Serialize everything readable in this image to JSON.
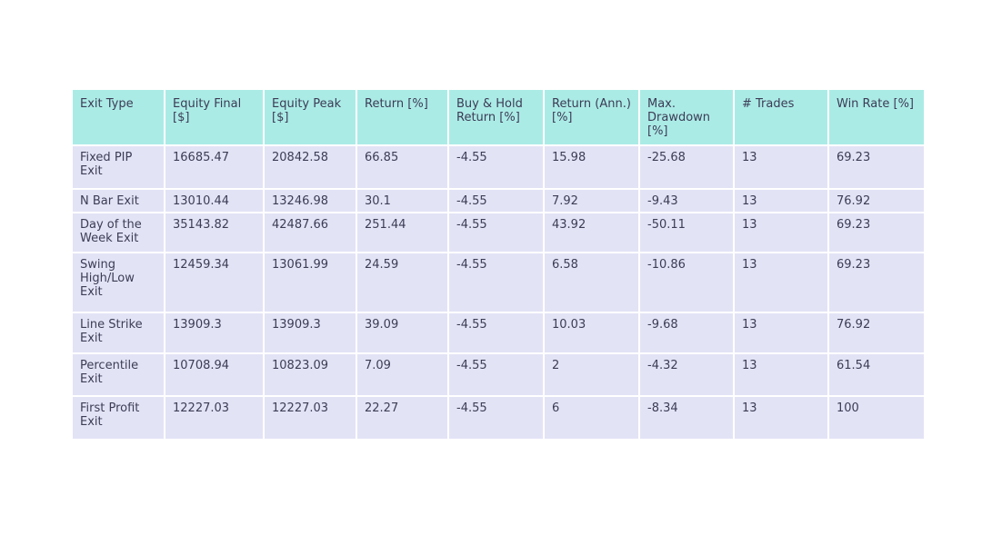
{
  "colors": {
    "header_bg": "#abebe6",
    "row_bg": "#e3e3f6",
    "text": "#3c3c55",
    "page_bg": "#ffffff"
  },
  "table": {
    "columns": [
      "Exit Type",
      "Equity Final [$]",
      "Equity Peak [$]",
      "Return [%]",
      "Buy & Hold Return [%]",
      "Return (Ann.) [%]",
      "Max. Drawdown [%]",
      "# Trades",
      "Win Rate [%]"
    ],
    "rows": [
      [
        "Fixed PIP Exit",
        "16685.47",
        "20842.58",
        "66.85",
        "-4.55",
        "15.98",
        "-25.68",
        "13",
        "69.23"
      ],
      [
        "N Bar Exit",
        "13010.44",
        "13246.98",
        "30.1",
        "-4.55",
        "7.92",
        "-9.43",
        "13",
        "76.92"
      ],
      [
        "Day of the Week Exit",
        "35143.82",
        "42487.66",
        "251.44",
        "-4.55",
        "43.92",
        "-50.11",
        "13",
        "69.23"
      ],
      [
        "Swing High/Low Exit",
        "12459.34",
        "13061.99",
        "24.59",
        "-4.55",
        "6.58",
        "-10.86",
        "13",
        "69.23"
      ],
      [
        "Line Strike Exit",
        "13909.3",
        "13909.3",
        "39.09",
        "-4.55",
        "10.03",
        "-9.68",
        "13",
        "76.92"
      ],
      [
        "Percentile Exit",
        "10708.94",
        "10823.09",
        "7.09",
        "-4.55",
        "2",
        "-4.32",
        "13",
        "61.54"
      ],
      [
        "First Profit Exit",
        "12227.03",
        "12227.03",
        "22.27",
        "-4.55",
        "6",
        "-8.34",
        "13",
        "100"
      ]
    ]
  }
}
